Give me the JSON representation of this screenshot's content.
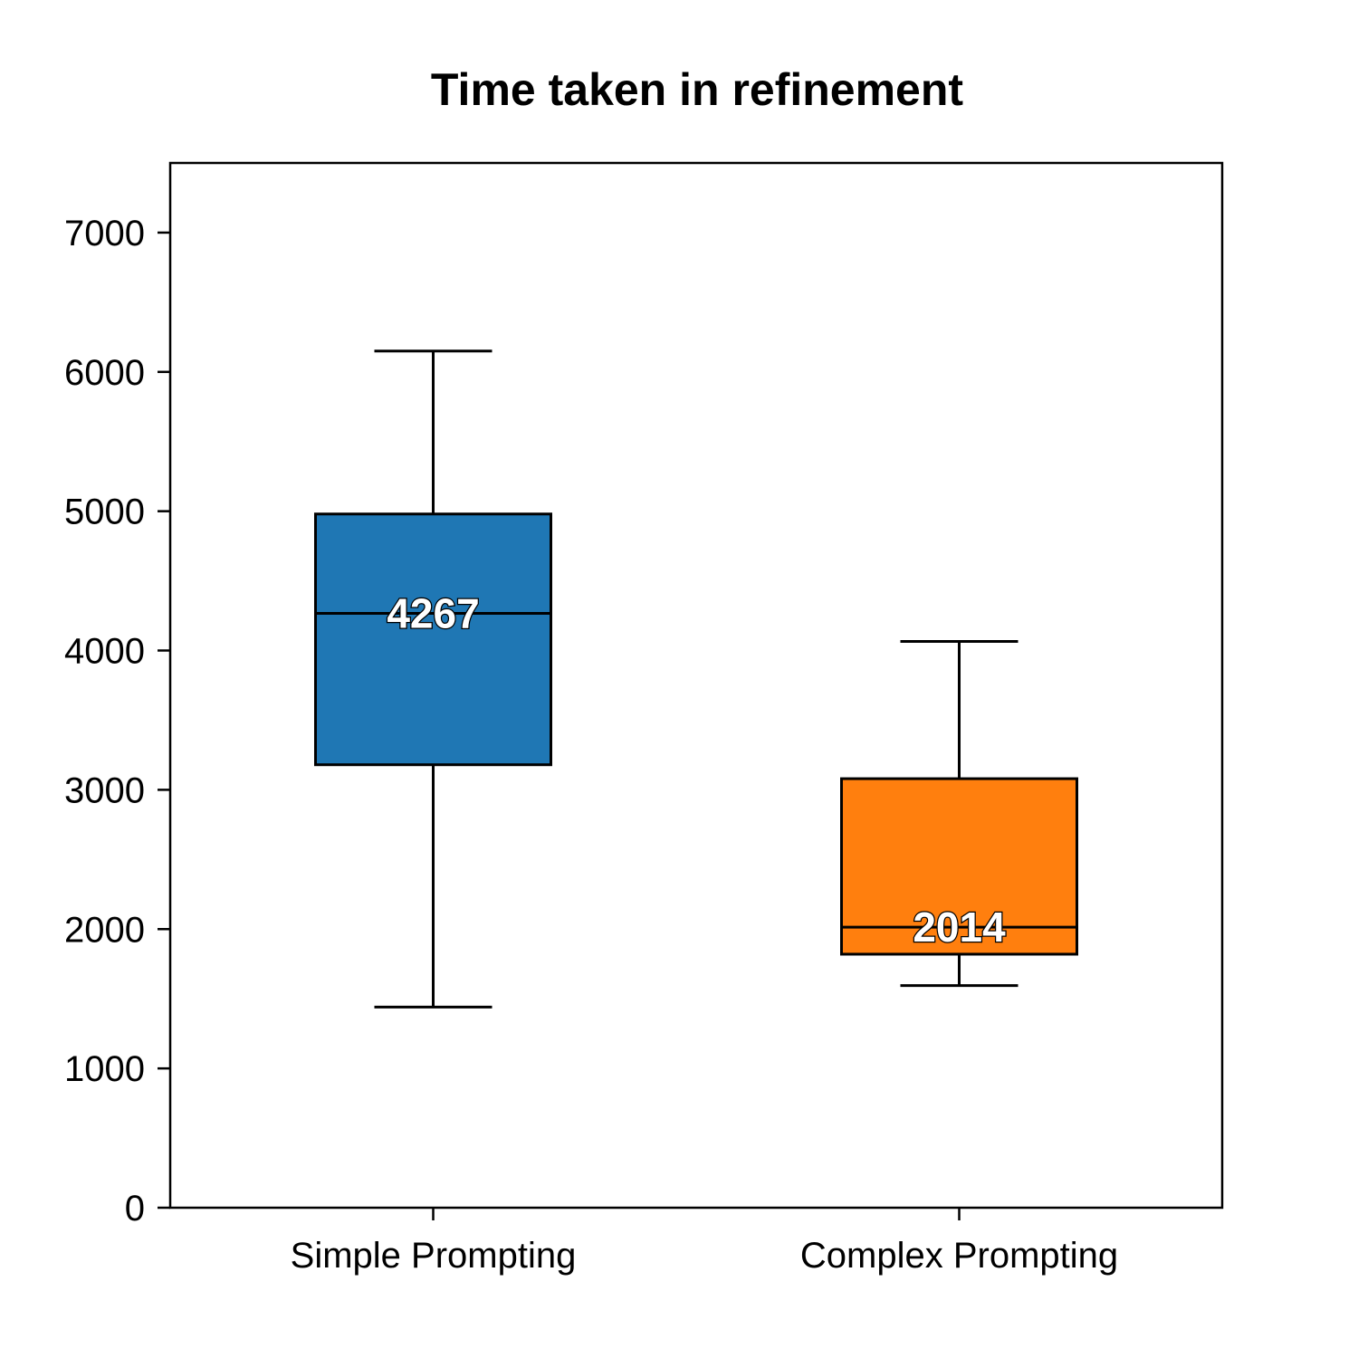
{
  "chart_data": {
    "type": "box",
    "title": "Time taken in refinement",
    "xlabel": "",
    "ylabel": "",
    "ylim": [
      0,
      7500
    ],
    "yticks": [
      0,
      1000,
      2000,
      3000,
      4000,
      5000,
      6000,
      7000
    ],
    "grid": false,
    "categories": [
      "Simple Prompting",
      "Complex Prompting"
    ],
    "boxes": [
      {
        "category": "Simple Prompting",
        "whisker_low": 1440,
        "q1": 3180,
        "median": 4267,
        "q3": 4980,
        "whisker_high": 6150,
        "median_label": "4267",
        "color": "#1f77b4"
      },
      {
        "category": "Complex Prompting",
        "whisker_low": 1595,
        "q1": 1820,
        "median": 2014,
        "q3": 3080,
        "whisker_high": 4065,
        "median_label": "2014",
        "color": "#ff7f0e"
      }
    ]
  }
}
